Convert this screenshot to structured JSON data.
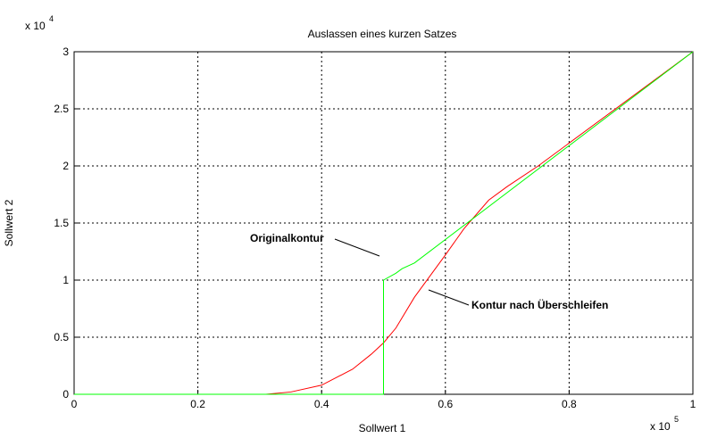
{
  "chart_data": {
    "type": "line",
    "title": "Auslassen eines kurzen Satzes",
    "xlabel": "Sollwert 1",
    "ylabel": "Sollwert 2",
    "x_multiplier": {
      "base": "x 10",
      "exponent": "5"
    },
    "y_multiplier": {
      "base": "x 10",
      "exponent": "4"
    },
    "xlim": [
      0,
      1
    ],
    "ylim": [
      0,
      3
    ],
    "xticks": [
      0,
      0.2,
      0.4,
      0.6,
      0.8,
      1
    ],
    "yticks": [
      0,
      0.5,
      1,
      1.5,
      2,
      2.5,
      3
    ],
    "grid": true,
    "series": [
      {
        "name": "Kontur nach Überschleifen",
        "color": "#ff0000",
        "x": [
          0,
          0.31,
          0.35,
          0.4,
          0.45,
          0.48,
          0.5,
          0.52,
          0.55,
          0.6,
          0.63,
          0.67,
          0.7,
          0.75,
          1
        ],
        "values": [
          0,
          0,
          0.02,
          0.08,
          0.22,
          0.35,
          0.45,
          0.58,
          0.85,
          1.22,
          1.45,
          1.7,
          1.82,
          2.0,
          3
        ]
      },
      {
        "name": "Originalkontur",
        "color": "#00ff00",
        "x": [
          0,
          0.5,
          0.5,
          0.52,
          0.53,
          0.55,
          1
        ],
        "values": [
          0,
          0,
          1.0,
          1.06,
          1.1,
          1.15,
          3
        ]
      }
    ]
  }
}
